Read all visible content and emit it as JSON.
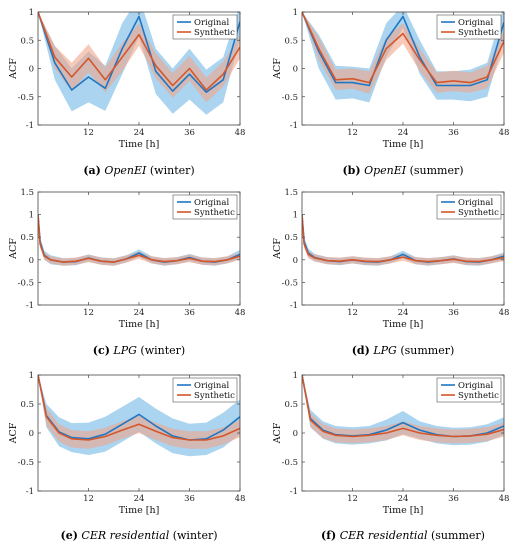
{
  "chart_data": [
    {
      "id": "a",
      "type": "line",
      "caption": {
        "letter": "(a)",
        "name": "OpenEI",
        "season": "(winter)"
      },
      "xlabel": "Time [h]",
      "ylabel": "ACF",
      "xlim": [
        0,
        48
      ],
      "ylim": [
        -1,
        1
      ],
      "xticks": [
        12,
        24,
        36,
        48
      ],
      "yticks": [
        -1,
        -0.5,
        0,
        0.5,
        1
      ],
      "ytick_labels": [
        "-1",
        "-0.5",
        "0",
        "0.5",
        "1"
      ],
      "grid": false,
      "legend_position": "top-right",
      "x": [
        0,
        4,
        8,
        12,
        16,
        20,
        24,
        28,
        32,
        36,
        40,
        44,
        48
      ],
      "series": [
        {
          "name": "Original",
          "color": "#1f77c4",
          "band_color": "#8ec6ea",
          "values": [
            1,
            0.1,
            -0.38,
            -0.15,
            -0.35,
            0.35,
            0.92,
            -0.05,
            -0.4,
            -0.1,
            -0.42,
            -0.2,
            0.83
          ],
          "band_half_width": [
            0,
            0.3,
            0.38,
            0.45,
            0.4,
            0.45,
            0.35,
            0.4,
            0.4,
            0.45,
            0.4,
            0.4,
            0.3
          ]
        },
        {
          "name": "Synthetic",
          "color": "#d4572c",
          "band_color": "#f0a58a",
          "values": [
            1,
            0.2,
            -0.15,
            0.18,
            -0.2,
            0.2,
            0.6,
            0.05,
            -0.3,
            0.0,
            -0.38,
            -0.1,
            0.38
          ],
          "band_half_width": [
            0,
            0.2,
            0.25,
            0.25,
            0.22,
            0.25,
            0.2,
            0.22,
            0.22,
            0.22,
            0.22,
            0.22,
            0.2
          ]
        }
      ]
    },
    {
      "id": "b",
      "type": "line",
      "caption": {
        "letter": "(b)",
        "name": "OpenEI",
        "season": "(summer)"
      },
      "xlabel": "Time [h]",
      "ylabel": "ACF",
      "xlim": [
        0,
        48
      ],
      "ylim": [
        -1,
        1
      ],
      "xticks": [
        12,
        24,
        36,
        48
      ],
      "yticks": [
        -1,
        -0.5,
        0,
        0.5,
        1
      ],
      "ytick_labels": [
        "-1",
        "-0.5",
        "0",
        "0.5",
        "1"
      ],
      "grid": false,
      "legend_position": "top-right",
      "x": [
        0,
        4,
        8,
        12,
        16,
        20,
        24,
        28,
        32,
        36,
        40,
        44,
        48
      ],
      "series": [
        {
          "name": "Original",
          "color": "#1f77c4",
          "band_color": "#8ec6ea",
          "values": [
            1,
            0.3,
            -0.25,
            -0.25,
            -0.3,
            0.5,
            0.92,
            0.2,
            -0.3,
            -0.3,
            -0.3,
            -0.2,
            0.82
          ],
          "band_half_width": [
            0,
            0.3,
            0.3,
            0.28,
            0.3,
            0.3,
            0.2,
            0.3,
            0.25,
            0.25,
            0.28,
            0.3,
            0.3
          ]
        },
        {
          "name": "Synthetic",
          "color": "#d4572c",
          "band_color": "#f0a58a",
          "values": [
            1,
            0.35,
            -0.2,
            -0.18,
            -0.25,
            0.35,
            0.62,
            0.15,
            -0.25,
            -0.22,
            -0.25,
            -0.15,
            0.48
          ],
          "band_half_width": [
            0,
            0.2,
            0.18,
            0.18,
            0.2,
            0.2,
            0.18,
            0.2,
            0.18,
            0.18,
            0.18,
            0.2,
            0.2
          ]
        }
      ]
    },
    {
      "id": "c",
      "type": "line",
      "caption": {
        "letter": "(c)",
        "name": "LPG",
        "season": "(winter)"
      },
      "xlabel": "Time [h]",
      "ylabel": "ACF",
      "xlim": [
        0,
        48
      ],
      "ylim": [
        -1,
        1.5
      ],
      "xticks": [
        12,
        24,
        36,
        48
      ],
      "yticks": [
        -1,
        -0.5,
        0,
        0.5,
        1,
        1.5
      ],
      "ytick_labels": [
        "-1",
        "-0.5",
        "0",
        "0.5",
        "1",
        "1.5"
      ],
      "grid": false,
      "legend_position": "top-right",
      "x": [
        0,
        0.5,
        1.5,
        3,
        6,
        9,
        12,
        15,
        18,
        21,
        24,
        27,
        30,
        33,
        36,
        39,
        42,
        45,
        48
      ],
      "series": [
        {
          "name": "Original",
          "color": "#1f77c4",
          "band_color": "#8ec6ea",
          "values": [
            1,
            0.4,
            0.1,
            0.0,
            -0.05,
            -0.04,
            0.04,
            -0.03,
            -0.05,
            0.02,
            0.15,
            0.0,
            -0.05,
            -0.02,
            0.05,
            -0.03,
            -0.05,
            0.0,
            0.12
          ],
          "band_half_width": [
            0,
            0.1,
            0.1,
            0.1,
            0.08,
            0.08,
            0.08,
            0.08,
            0.08,
            0.08,
            0.08,
            0.08,
            0.08,
            0.08,
            0.08,
            0.08,
            0.08,
            0.08,
            0.1
          ]
        },
        {
          "name": "Synthetic",
          "color": "#d4572c",
          "band_color": "#f0a58a",
          "values": [
            1,
            0.35,
            0.08,
            0.0,
            -0.05,
            -0.03,
            0.03,
            -0.03,
            -0.05,
            0.02,
            0.1,
            0.0,
            -0.04,
            -0.02,
            0.03,
            -0.03,
            -0.04,
            0.0,
            0.08
          ],
          "band_half_width": [
            0,
            0.08,
            0.08,
            0.08,
            0.08,
            0.08,
            0.08,
            0.08,
            0.08,
            0.08,
            0.08,
            0.08,
            0.08,
            0.08,
            0.08,
            0.08,
            0.08,
            0.08,
            0.08
          ]
        }
      ]
    },
    {
      "id": "d",
      "type": "line",
      "caption": {
        "letter": "(d)",
        "name": "LPG",
        "season": "(summer)"
      },
      "xlabel": "Time [h]",
      "ylabel": "ACF",
      "xlim": [
        0,
        48
      ],
      "ylim": [
        -1,
        1.5
      ],
      "xticks": [
        12,
        24,
        36,
        48
      ],
      "yticks": [
        -1,
        -0.5,
        0,
        0.5,
        1,
        1.5
      ],
      "ytick_labels": [
        "-1",
        "-0.5",
        "0",
        "0.5",
        "1",
        "1.5"
      ],
      "grid": false,
      "legend_position": "top-right",
      "x": [
        0,
        0.5,
        1.5,
        3,
        6,
        9,
        12,
        15,
        18,
        21,
        24,
        27,
        30,
        33,
        36,
        39,
        42,
        45,
        48
      ],
      "series": [
        {
          "name": "Original",
          "color": "#1f77c4",
          "band_color": "#8ec6ea",
          "values": [
            1,
            0.4,
            0.15,
            0.05,
            -0.02,
            -0.04,
            0.0,
            -0.04,
            -0.05,
            0.0,
            0.12,
            -0.02,
            -0.05,
            -0.02,
            0.02,
            -0.04,
            -0.05,
            0.0,
            0.08
          ],
          "band_half_width": [
            0,
            0.1,
            0.1,
            0.08,
            0.08,
            0.08,
            0.08,
            0.08,
            0.08,
            0.08,
            0.08,
            0.08,
            0.08,
            0.08,
            0.08,
            0.08,
            0.08,
            0.08,
            0.08
          ]
        },
        {
          "name": "Synthetic",
          "color": "#d4572c",
          "band_color": "#f0a58a",
          "values": [
            1,
            0.35,
            0.12,
            0.04,
            -0.02,
            -0.03,
            0.0,
            -0.03,
            -0.04,
            0.0,
            0.06,
            -0.02,
            -0.04,
            -0.02,
            0.01,
            -0.03,
            -0.04,
            0.0,
            0.05
          ],
          "band_half_width": [
            0,
            0.08,
            0.08,
            0.08,
            0.08,
            0.08,
            0.08,
            0.08,
            0.08,
            0.08,
            0.08,
            0.08,
            0.08,
            0.08,
            0.08,
            0.08,
            0.08,
            0.08,
            0.08
          ]
        }
      ]
    },
    {
      "id": "e",
      "type": "line",
      "caption": {
        "letter": "(e)",
        "name": "CER residential",
        "season": "(winter)"
      },
      "xlabel": "Time [h]",
      "ylabel": "ACF",
      "xlim": [
        0,
        48
      ],
      "ylim": [
        -1,
        1
      ],
      "xticks": [
        12,
        24,
        36,
        48
      ],
      "yticks": [
        -1,
        -0.5,
        0,
        0.5,
        1
      ],
      "ytick_labels": [
        "-1",
        "-0.5",
        "0",
        "0.5",
        "1"
      ],
      "grid": false,
      "legend_position": "top-right",
      "x": [
        0,
        2,
        5,
        8,
        12,
        16,
        20,
        24,
        28,
        32,
        36,
        40,
        44,
        48
      ],
      "series": [
        {
          "name": "Original",
          "color": "#1f77c4",
          "band_color": "#8ec6ea",
          "values": [
            1,
            0.3,
            0.02,
            -0.08,
            -0.1,
            -0.02,
            0.15,
            0.32,
            0.12,
            -0.05,
            -0.12,
            -0.1,
            0.05,
            0.28
          ],
          "band_half_width": [
            0,
            0.2,
            0.25,
            0.25,
            0.28,
            0.3,
            0.3,
            0.3,
            0.3,
            0.3,
            0.28,
            0.28,
            0.3,
            0.3
          ]
        },
        {
          "name": "Synthetic",
          "color": "#d4572c",
          "band_color": "#f0a58a",
          "values": [
            1,
            0.28,
            0.0,
            -0.1,
            -0.12,
            -0.06,
            0.05,
            0.15,
            0.03,
            -0.08,
            -0.12,
            -0.12,
            -0.05,
            0.08
          ],
          "band_half_width": [
            0,
            0.15,
            0.15,
            0.15,
            0.15,
            0.15,
            0.15,
            0.15,
            0.15,
            0.15,
            0.15,
            0.15,
            0.15,
            0.15
          ]
        }
      ]
    },
    {
      "id": "f",
      "type": "line",
      "caption": {
        "letter": "(f)",
        "name": "CER residential",
        "season": "(summer)"
      },
      "xlabel": "Time [h]",
      "ylabel": "ACF",
      "xlim": [
        0,
        48
      ],
      "ylim": [
        -1,
        1
      ],
      "xticks": [
        12,
        24,
        36,
        48
      ],
      "yticks": [
        -1,
        -0.5,
        0,
        0.5,
        1
      ],
      "ytick_labels": [
        "-1",
        "-0.5",
        "0",
        "0.5",
        "1"
      ],
      "grid": false,
      "legend_position": "top-right",
      "x": [
        0,
        2,
        5,
        8,
        12,
        16,
        20,
        24,
        28,
        32,
        36,
        40,
        44,
        48
      ],
      "series": [
        {
          "name": "Original",
          "color": "#1f77c4",
          "band_color": "#8ec6ea",
          "values": [
            1,
            0.25,
            0.05,
            -0.03,
            -0.05,
            -0.03,
            0.05,
            0.18,
            0.05,
            -0.03,
            -0.06,
            -0.05,
            0.0,
            0.12
          ],
          "band_half_width": [
            0,
            0.15,
            0.15,
            0.15,
            0.15,
            0.15,
            0.18,
            0.2,
            0.15,
            0.15,
            0.15,
            0.15,
            0.15,
            0.15
          ]
        },
        {
          "name": "Synthetic",
          "color": "#d4572c",
          "band_color": "#f0a58a",
          "values": [
            1,
            0.22,
            0.03,
            -0.04,
            -0.06,
            -0.04,
            0.0,
            0.08,
            0.0,
            -0.04,
            -0.06,
            -0.05,
            -0.02,
            0.06
          ],
          "band_half_width": [
            0,
            0.12,
            0.12,
            0.12,
            0.12,
            0.12,
            0.12,
            0.12,
            0.12,
            0.12,
            0.12,
            0.12,
            0.12,
            0.12
          ]
        }
      ]
    }
  ]
}
